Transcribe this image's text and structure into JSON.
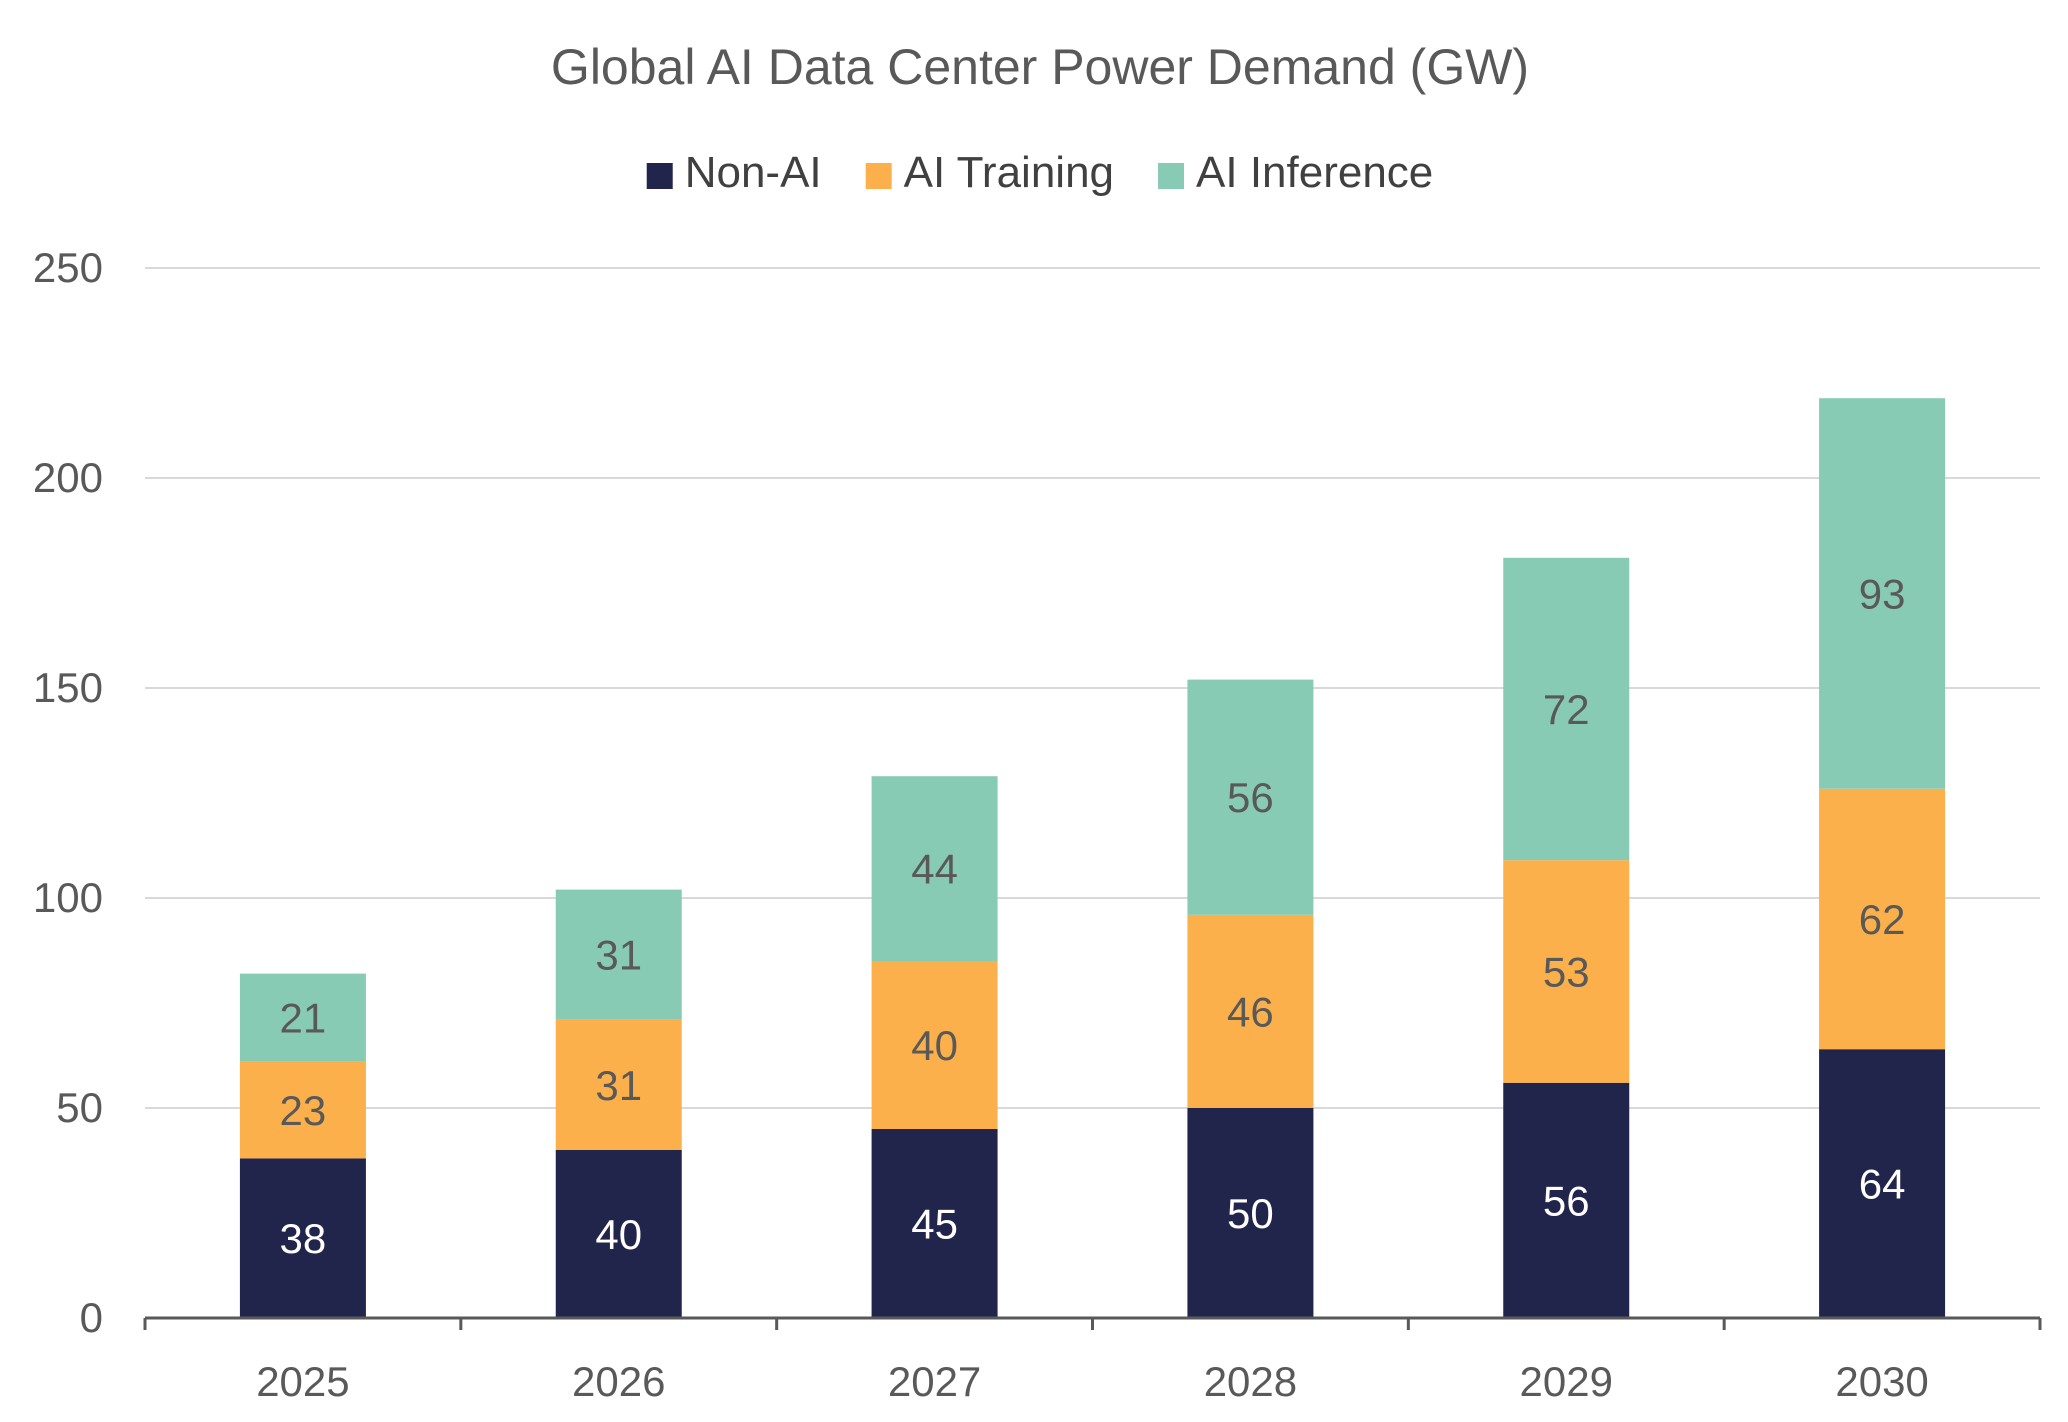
{
  "chart_data": {
    "type": "bar",
    "stacked": true,
    "title": "Global AI Data Center Power Demand (GW)",
    "xlabel": "",
    "ylabel": "",
    "categories": [
      "2025",
      "2026",
      "2027",
      "2028",
      "2029",
      "2030"
    ],
    "series": [
      {
        "name": "Non-AI",
        "color": "#21254b",
        "label_color": "#ffffff",
        "values": [
          38,
          40,
          45,
          50,
          56,
          64
        ]
      },
      {
        "name": "AI Training",
        "color": "#fbb04b",
        "label_color": "#595959",
        "values": [
          23,
          31,
          40,
          46,
          53,
          62
        ]
      },
      {
        "name": "AI Inference",
        "color": "#88cbb5",
        "label_color": "#595959",
        "values": [
          21,
          31,
          44,
          56,
          72,
          93
        ]
      }
    ],
    "ylim": [
      0,
      250
    ],
    "yticks": [
      0,
      50,
      100,
      150,
      200,
      250
    ],
    "grid": true,
    "legend_position": "top-center",
    "colors": {
      "gridline": "#d9d9d9",
      "axis": "#595959",
      "text": "#595959"
    }
  }
}
